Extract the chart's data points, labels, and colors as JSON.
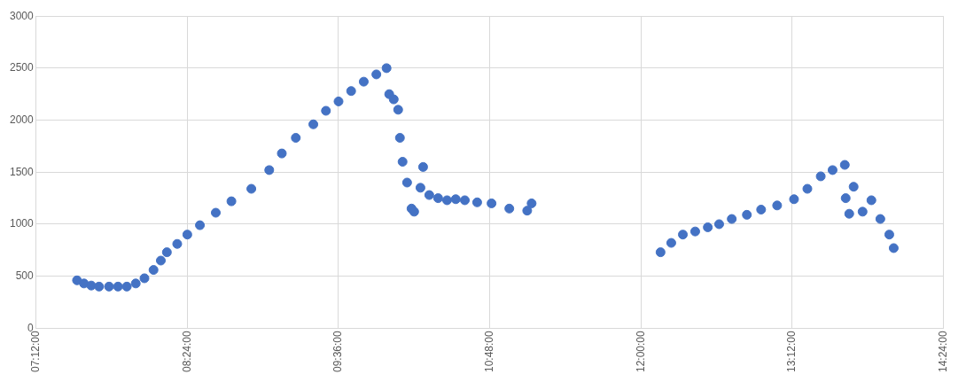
{
  "chart_data": {
    "type": "scatter",
    "marker": "circle",
    "grid": true,
    "x": [
      7.525,
      7.58,
      7.638,
      7.7,
      7.779,
      7.85,
      7.92,
      7.991,
      8.06,
      8.132,
      8.19,
      8.238,
      8.32,
      8.4,
      8.5,
      8.626,
      8.75,
      8.908,
      9.05,
      9.15,
      9.261,
      9.4,
      9.5,
      9.6,
      9.7,
      9.8,
      9.9,
      9.981,
      10.002,
      10.038,
      10.073,
      10.087,
      10.108,
      10.144,
      10.179,
      10.2,
      10.25,
      10.271,
      10.32,
      10.39,
      10.461,
      10.53,
      10.602,
      10.7,
      10.814,
      10.955,
      11.097,
      11.132,
      12.155,
      12.24,
      12.332,
      12.43,
      12.53,
      12.62,
      12.72,
      12.84,
      12.953,
      13.08,
      13.214,
      13.32,
      13.426,
      13.52,
      13.617,
      13.624,
      13.652,
      13.687,
      13.758,
      13.828,
      13.899,
      13.97,
      14.005
    ],
    "series": [
      {
        "color": "#4472c4",
        "values": [
          460,
          430,
          410,
          400,
          400,
          400,
          400,
          430,
          480,
          560,
          650,
          730,
          810,
          900,
          990,
          1110,
          1220,
          1340,
          1520,
          1680,
          1830,
          1960,
          2090,
          2180,
          2280,
          2370,
          2440,
          2500,
          2250,
          2200,
          2100,
          1830,
          1600,
          1400,
          1150,
          1120,
          1350,
          1550,
          1280,
          1250,
          1230,
          1240,
          1230,
          1210,
          1200,
          1150,
          1130,
          1200,
          730,
          820,
          900,
          930,
          970,
          1000,
          1050,
          1090,
          1140,
          1180,
          1240,
          1340,
          1460,
          1520,
          1570,
          1250,
          1100,
          1360,
          1120,
          1230,
          1050,
          900,
          770
        ]
      }
    ],
    "xlim": [
      7.2,
      14.4
    ],
    "xticks": [
      {
        "value": 7.2,
        "label": "07:12:00"
      },
      {
        "value": 8.4,
        "label": "08:24:00"
      },
      {
        "value": 9.6,
        "label": "09:36:00"
      },
      {
        "value": 10.8,
        "label": "10:48:00"
      },
      {
        "value": 12,
        "label": "12:00:00"
      },
      {
        "value": 13.2,
        "label": "13:12:00"
      },
      {
        "value": 14.4,
        "label": "14:24:00"
      }
    ],
    "ylim": [
      0,
      3000
    ],
    "yticks": [
      0,
      500,
      1000,
      1500,
      2000,
      2500,
      3000
    ]
  }
}
